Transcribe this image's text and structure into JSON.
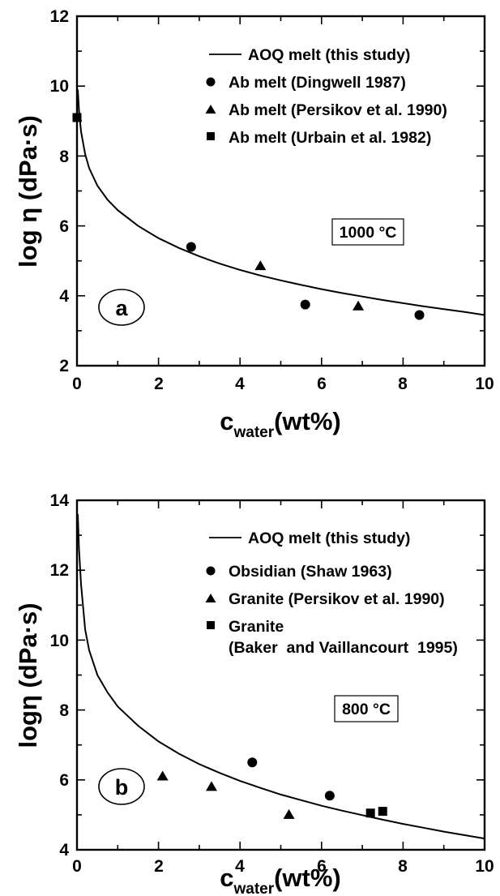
{
  "chart_data": [
    {
      "type": "scatter",
      "panel_label": "a",
      "temperature_label": "1000 °C",
      "xlabel_main": "c",
      "xlabel_sub": "water",
      "xlabel_tail": "(wt%)",
      "ylabel": "log η (dPa·s)",
      "xlim": [
        0,
        10
      ],
      "ylim": [
        2,
        12
      ],
      "x_ticks": [
        "0",
        "2",
        "4",
        "6",
        "8",
        "10"
      ],
      "y_ticks": [
        "2",
        "4",
        "6",
        "8",
        "10",
        "12"
      ],
      "legend_position": "top-right",
      "series": [
        {
          "name": "AOQ melt (this study)",
          "marker": "line",
          "x": [
            0.02,
            0.05,
            0.1,
            0.2,
            0.3,
            0.5,
            0.75,
            1.0,
            1.5,
            2.0,
            2.5,
            3.0,
            3.5,
            4.0,
            4.5,
            5.0,
            5.5,
            6.0,
            6.5,
            7.0,
            7.5,
            8.0,
            8.5,
            9.0,
            9.5,
            10.0
          ],
          "y": [
            9.9,
            9.3,
            8.7,
            8.05,
            7.65,
            7.15,
            6.75,
            6.45,
            6.0,
            5.65,
            5.37,
            5.13,
            4.92,
            4.74,
            4.58,
            4.44,
            4.31,
            4.19,
            4.08,
            3.98,
            3.88,
            3.79,
            3.7,
            3.62,
            3.54,
            3.45
          ]
        },
        {
          "name": "Ab melt (Dingwell 1987)",
          "marker": "circle",
          "x": [
            2.8,
            5.6,
            8.4
          ],
          "y": [
            5.4,
            3.75,
            3.45
          ]
        },
        {
          "name": "Ab melt (Persikov et al. 1990)",
          "marker": "triangle",
          "x": [
            4.5,
            6.9
          ],
          "y": [
            4.85,
            3.7
          ]
        },
        {
          "name": "Ab melt (Urbain et al. 1982)",
          "marker": "square",
          "x": [
            0.0
          ],
          "y": [
            9.1
          ]
        }
      ]
    },
    {
      "type": "scatter",
      "panel_label": "b",
      "temperature_label": "800 °C",
      "xlabel_main": "c",
      "xlabel_sub": "water",
      "xlabel_tail": "(wt%)",
      "ylabel": "logη (dPa·s)",
      "xlim": [
        0,
        10
      ],
      "ylim": [
        4,
        14
      ],
      "x_ticks": [
        "0",
        "2",
        "4",
        "6",
        "8",
        "10"
      ],
      "y_ticks": [
        "4",
        "6",
        "8",
        "10",
        "12",
        "14"
      ],
      "legend_position": "top-right",
      "series": [
        {
          "name": "AOQ melt (this study)",
          "marker": "line",
          "x": [
            0.02,
            0.05,
            0.1,
            0.2,
            0.3,
            0.5,
            0.75,
            1.0,
            1.5,
            2.0,
            2.5,
            3.0,
            3.5,
            4.0,
            4.5,
            5.0,
            5.5,
            6.0,
            6.5,
            7.0,
            7.5,
            8.0,
            8.5,
            9.0,
            9.5,
            10.0
          ],
          "y": [
            13.6,
            12.6,
            11.6,
            10.3,
            9.7,
            9.0,
            8.5,
            8.1,
            7.55,
            7.1,
            6.75,
            6.45,
            6.2,
            5.97,
            5.77,
            5.58,
            5.42,
            5.26,
            5.12,
            4.99,
            4.86,
            4.74,
            4.63,
            4.52,
            4.42,
            4.32
          ]
        },
        {
          "name": "Obsidian (Shaw 1963)",
          "marker": "circle",
          "x": [
            4.3,
            6.2
          ],
          "y": [
            6.5,
            5.55
          ]
        },
        {
          "name": "Granite (Persikov et al. 1990)",
          "marker": "triangle",
          "x": [
            2.1,
            3.3,
            5.2
          ],
          "y": [
            6.1,
            5.8,
            5.0
          ]
        },
        {
          "name": "Granite (Baker and Vaillancourt 1995)",
          "name_line1": "Granite",
          "name_line2": "(Baker  and Vaillancourt  1995)",
          "marker": "square",
          "x": [
            7.2,
            7.5
          ],
          "y": [
            5.05,
            5.1
          ]
        }
      ]
    }
  ]
}
